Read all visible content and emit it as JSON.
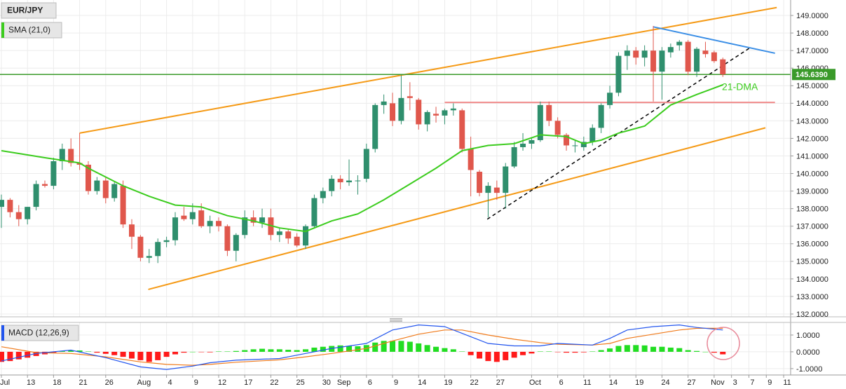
{
  "chart_data": [
    {
      "type": "candlestick",
      "title": "EUR/JPY",
      "up_color": "#2f8f6d",
      "down_color": "#e0574c",
      "open": [
        138.1,
        138.5,
        137.8,
        137.4,
        138.1,
        139.4,
        139.3,
        140.7,
        141.4,
        140.6,
        140.5,
        139.0,
        139.6,
        138.6,
        139.3,
        137.1,
        136.4,
        135.2,
        135.3,
        136.1,
        136.2,
        137.6,
        137.4,
        137.9,
        137.0,
        137.3,
        137.0,
        135.6,
        136.5,
        137.5,
        137.2,
        137.5,
        136.5,
        136.7,
        136.4,
        135.9,
        137.0,
        138.6,
        139.0,
        139.7,
        139.5,
        139.6,
        139.7,
        141.4,
        143.9,
        144.0,
        143.0,
        144.4,
        144.2,
        142.8,
        143.4,
        143.3,
        143.6,
        143.6,
        141.4,
        140.1,
        138.9,
        139.2,
        138.9,
        140.4,
        141.5,
        141.7,
        141.9,
        143.9,
        143.0,
        142.2,
        141.6,
        141.5,
        141.8,
        142.6,
        143.9,
        144.6,
        146.7,
        147.0,
        146.6,
        147.0,
        145.8,
        146.9,
        147.3,
        147.5,
        145.8,
        147.0,
        146.9,
        146.5
      ],
      "high": [
        138.8,
        138.6,
        138.2,
        138.1,
        139.6,
        139.6,
        140.9,
        141.7,
        142.0,
        142.3,
        140.7,
        139.8,
        139.8,
        139.5,
        139.6,
        137.4,
        136.5,
        135.7,
        136.3,
        136.4,
        137.8,
        138.1,
        138.3,
        138.3,
        137.6,
        137.5,
        137.1,
        136.6,
        137.9,
        137.9,
        138.0,
        138.0,
        136.9,
        136.8,
        136.6,
        137.1,
        138.8,
        139.2,
        139.9,
        139.9,
        140.8,
        139.9,
        141.7,
        144.0,
        144.5,
        144.6,
        145.6,
        145.2,
        144.3,
        143.6,
        143.8,
        143.7,
        144.0,
        143.7,
        142.1,
        140.2,
        139.5,
        139.6,
        140.6,
        141.8,
        142.3,
        142.0,
        144.1,
        144.1,
        143.2,
        142.3,
        141.9,
        142.1,
        142.8,
        144.0,
        145.0,
        146.9,
        147.3,
        147.2,
        147.3,
        148.4,
        147.2,
        147.4,
        147.6,
        147.6,
        147.2,
        147.5,
        147.0,
        146.6
      ],
      "low": [
        136.9,
        137.5,
        137.0,
        137.1,
        137.9,
        139.2,
        139.1,
        140.2,
        140.4,
        140.2,
        138.8,
        138.8,
        138.3,
        138.4,
        136.9,
        135.7,
        135.0,
        134.9,
        134.9,
        135.8,
        135.9,
        137.3,
        137.1,
        136.9,
        136.6,
        136.7,
        135.3,
        135.0,
        136.3,
        137.0,
        136.9,
        136.2,
        136.1,
        136.0,
        135.8,
        135.7,
        136.9,
        138.3,
        138.7,
        139.1,
        139.3,
        138.8,
        139.5,
        141.2,
        143.4,
        142.7,
        142.8,
        143.6,
        142.5,
        142.4,
        142.9,
        142.8,
        143.3,
        141.2,
        138.7,
        138.7,
        137.5,
        138.5,
        138.0,
        140.3,
        141.3,
        141.4,
        141.8,
        142.7,
        142.0,
        141.3,
        141.2,
        141.3,
        141.6,
        142.3,
        143.7,
        144.4,
        145.9,
        146.2,
        146.1,
        144.1,
        144.2,
        146.6,
        147.0,
        145.6,
        145.5,
        146.6,
        146.3,
        145.5
      ],
      "close": [
        138.5,
        137.8,
        137.4,
        138.1,
        139.4,
        139.3,
        140.7,
        141.4,
        140.6,
        140.5,
        139.0,
        139.6,
        138.6,
        139.4,
        137.1,
        136.4,
        135.2,
        135.3,
        136.1,
        136.2,
        137.5,
        137.4,
        137.8,
        137.0,
        137.3,
        137.0,
        135.6,
        136.5,
        137.5,
        137.2,
        137.5,
        136.5,
        136.7,
        136.3,
        135.9,
        137.0,
        138.6,
        139.0,
        139.7,
        139.5,
        139.6,
        139.6,
        141.4,
        143.9,
        144.1,
        143.0,
        144.3,
        144.3,
        142.8,
        143.5,
        143.3,
        143.6,
        143.7,
        141.4,
        140.2,
        138.9,
        139.3,
        138.9,
        140.4,
        141.5,
        141.7,
        141.9,
        143.9,
        143.0,
        142.2,
        141.6,
        141.6,
        141.8,
        142.6,
        143.9,
        144.6,
        146.7,
        147.0,
        146.6,
        147.0,
        145.8,
        147.0,
        147.2,
        147.5,
        145.8,
        147.1,
        146.8,
        146.4,
        145.639
      ],
      "overlays": [
        {
          "name": "SMA (21,0)",
          "color": "#3ccc1e",
          "x": [
            0,
            5,
            9,
            10,
            14,
            17,
            20,
            23,
            26,
            29,
            32,
            35,
            38,
            41,
            44,
            47,
            50,
            53,
            56,
            59,
            62,
            65,
            67,
            69,
            71,
            74,
            77,
            80,
            83
          ],
          "values": [
            141.3,
            140.9,
            140.6,
            140.3,
            139.3,
            138.7,
            138.2,
            138.1,
            137.6,
            137.3,
            136.9,
            136.7,
            137.3,
            137.7,
            138.5,
            139.4,
            140.3,
            141.3,
            141.6,
            141.7,
            142.2,
            142.1,
            141.7,
            141.9,
            142.3,
            142.7,
            143.9,
            144.5,
            145.05
          ]
        }
      ],
      "trendlines": [
        {
          "color": "#f59a16",
          "dash": false,
          "x": [
            9,
            89.2
          ],
          "values": [
            142.3,
            149.45
          ]
        },
        {
          "color": "#f59a16",
          "dash": false,
          "x": [
            16.9,
            87.9
          ],
          "values": [
            133.4,
            142.6
          ]
        },
        {
          "color": "#000000",
          "dash": true,
          "x": [
            55.9,
            86.1
          ],
          "values": [
            137.4,
            147.15
          ]
        },
        {
          "color": "#3a8ee6",
          "dash": false,
          "x": [
            75,
            89
          ],
          "values": [
            148.35,
            146.85
          ]
        },
        {
          "color": "#f08a8a",
          "dash": false,
          "x": [
            51,
            89
          ],
          "values": [
            144.05,
            144.05
          ]
        }
      ],
      "annotation": "21-DMA",
      "last_price": {
        "value": 145.639,
        "label": "145.6390"
      },
      "last_price_color": "#3a9a2a",
      "ylim": [
        131.84,
        149.88
      ],
      "yticks": [
        {
          "value": 132,
          "label": "132.0000"
        },
        {
          "value": 133,
          "label": "133.0000"
        },
        {
          "value": 134,
          "label": "134.0000"
        },
        {
          "value": 135,
          "label": "135.0000"
        },
        {
          "value": 136,
          "label": "136.0000"
        },
        {
          "value": 137,
          "label": "137.0000"
        },
        {
          "value": 138,
          "label": "138.0000"
        },
        {
          "value": 139,
          "label": "139.0000"
        },
        {
          "value": 140,
          "label": "140.0000"
        },
        {
          "value": 141,
          "label": "141.0000"
        },
        {
          "value": 142,
          "label": "142.0000"
        },
        {
          "value": 143,
          "label": "143.0000"
        },
        {
          "value": 144,
          "label": "144.0000"
        },
        {
          "value": 145,
          "label": "145.0000"
        },
        {
          "value": 146,
          "label": "146.0000"
        },
        {
          "value": 147,
          "label": "147.0000"
        },
        {
          "value": 148,
          "label": "148.0000"
        },
        {
          "value": 149,
          "label": "149.0000"
        }
      ],
      "grid": true
    },
    {
      "type": "macd",
      "title": "MACD (12,26,9)",
      "histogram": [
        -0.6,
        -0.55,
        -0.45,
        -0.35,
        -0.25,
        -0.15,
        -0.05,
        0.05,
        0.08,
        0.08,
        0.02,
        -0.05,
        -0.12,
        -0.2,
        -0.3,
        -0.4,
        -0.5,
        -0.6,
        -0.5,
        -0.3,
        -0.15,
        -0.05,
        0.0,
        -0.02,
        -0.03,
        0.02,
        0.02,
        0.05,
        0.1,
        0.15,
        0.18,
        0.15,
        0.15,
        0.12,
        0.1,
        0.15,
        0.25,
        0.3,
        0.35,
        0.38,
        0.35,
        0.33,
        0.4,
        0.55,
        0.65,
        0.65,
        0.65,
        0.6,
        0.5,
        0.4,
        0.3,
        0.22,
        0.15,
        0.02,
        -0.2,
        -0.4,
        -0.55,
        -0.6,
        -0.5,
        -0.35,
        -0.2,
        -0.1,
        0.02,
        0.02,
        -0.02,
        -0.05,
        -0.05,
        -0.03,
        0.02,
        0.1,
        0.2,
        0.35,
        0.4,
        0.4,
        0.38,
        0.3,
        0.3,
        0.25,
        0.22,
        0.1,
        0.05,
        0.0,
        -0.05,
        -0.15
      ],
      "hist_up_color": "#22dd22",
      "hist_down_color": "#ff1a1a",
      "macd": {
        "color": "#2255ee",
        "x": [
          0,
          4,
          8,
          12,
          16,
          19,
          22,
          24,
          27,
          32,
          35,
          38,
          42,
          45,
          48,
          51,
          53,
          56,
          59,
          62,
          64,
          68,
          70,
          72,
          75,
          78,
          80,
          83
        ],
        "values": [
          -0.55,
          -0.1,
          0.1,
          -0.35,
          -0.9,
          -1.05,
          -0.85,
          -0.65,
          -0.5,
          -0.4,
          -0.1,
          0.2,
          0.5,
          1.3,
          1.6,
          1.5,
          1.1,
          0.5,
          0.35,
          0.35,
          0.5,
          0.4,
          0.8,
          1.3,
          1.5,
          1.6,
          1.45,
          1.3
        ]
      },
      "signal": {
        "color": "#f07a1a",
        "x": [
          0,
          4,
          8,
          12,
          16,
          19,
          22,
          24,
          27,
          32,
          35,
          38,
          42,
          45,
          48,
          51,
          53,
          56,
          59,
          62,
          64,
          68,
          70,
          72,
          75,
          78,
          80,
          83
        ],
        "values": [
          0.3,
          -0.05,
          -0.1,
          -0.3,
          -0.6,
          -0.75,
          -0.8,
          -0.75,
          -0.62,
          -0.48,
          -0.3,
          -0.1,
          0.2,
          0.65,
          1.05,
          1.3,
          1.3,
          1.0,
          0.75,
          0.55,
          0.45,
          0.4,
          0.5,
          0.8,
          1.05,
          1.3,
          1.4,
          1.4
        ]
      },
      "ylim": [
        -1.38,
        1.75
      ],
      "yticks": [
        {
          "value": -1,
          "label": "-1.0000"
        },
        {
          "value": 0,
          "label": "0.0000"
        },
        {
          "value": 1,
          "label": "1.0000"
        }
      ],
      "xlim": [
        -0.16,
        90.8
      ],
      "xticks": [
        {
          "value": 0,
          "label": "Jul"
        },
        {
          "value": 3,
          "label": "13"
        },
        {
          "value": 6,
          "label": "18"
        },
        {
          "value": 9,
          "label": "21"
        },
        {
          "value": 12,
          "label": "26"
        },
        {
          "value": 16,
          "label": "Aug"
        },
        {
          "value": 19,
          "label": "4"
        },
        {
          "value": 22,
          "label": "9"
        },
        {
          "value": 25,
          "label": "12"
        },
        {
          "value": 28,
          "label": "17"
        },
        {
          "value": 31,
          "label": "22"
        },
        {
          "value": 34,
          "label": "25"
        },
        {
          "value": 37,
          "label": "30"
        },
        {
          "value": 39,
          "label": "Sep"
        },
        {
          "value": 42,
          "label": "6"
        },
        {
          "value": 45,
          "label": "9"
        },
        {
          "value": 48,
          "label": "14"
        },
        {
          "value": 51,
          "label": "19"
        },
        {
          "value": 54,
          "label": "22"
        },
        {
          "value": 57,
          "label": "27"
        },
        {
          "value": 61,
          "label": "Oct"
        },
        {
          "value": 64,
          "label": "6"
        },
        {
          "value": 67,
          "label": "11"
        },
        {
          "value": 70,
          "label": "14"
        },
        {
          "value": 73,
          "label": "19"
        },
        {
          "value": 76,
          "label": "24"
        },
        {
          "value": 79,
          "label": "27"
        },
        {
          "value": 82,
          "label": "Nov"
        },
        {
          "value": 84,
          "label": "3"
        },
        {
          "value": 86,
          "label": "7"
        },
        {
          "value": 88,
          "label": "9"
        },
        {
          "value": 90,
          "label": "11"
        }
      ],
      "grid": true
    }
  ]
}
